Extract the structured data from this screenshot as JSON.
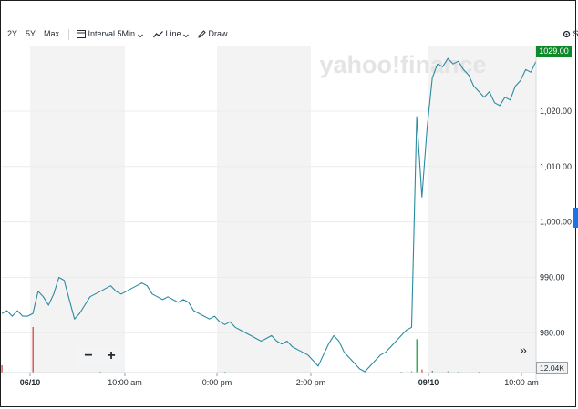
{
  "toolbar": {
    "ranges": [
      "2Y",
      "5Y",
      "Max"
    ],
    "interval_label": "Interval",
    "interval_value": "5Min",
    "chart_type": "Line",
    "draw_label": "Draw",
    "settings_label": "S"
  },
  "watermark": "yahoo!finance",
  "price_tag": "1029.00",
  "volume_tag": "12.04K",
  "zoom": {
    "minus": "−",
    "plus": "+"
  },
  "scroll_label": "»",
  "colors": {
    "line": "#2a8aa0",
    "up_tag": "#0f8a2a",
    "volume_up": "#2fa84f",
    "volume_down": "#d9534f",
    "shade": "#f3f3f3"
  },
  "chart_data": {
    "type": "line",
    "ylim": [
      973,
      1031
    ],
    "y_ticks": [
      "1,020.00",
      "1,010.00",
      "1,000.00",
      "990.00",
      "980.00"
    ],
    "y_tick_values": [
      1020,
      1010,
      1000,
      990,
      980
    ],
    "x_ticks": [
      "06/10",
      "10:00 am",
      "0:00 pm",
      "2:00 pm",
      "09/10",
      "10:00 am"
    ],
    "x_tick_bold": [
      true,
      false,
      false,
      false,
      true,
      false
    ],
    "series": [
      {
        "values": [
          983.5,
          984,
          983,
          984,
          983,
          983,
          983.5,
          987.5,
          986.5,
          985,
          987,
          990,
          989.5,
          986,
          982.5,
          983.5,
          985,
          986.5,
          987,
          987.5,
          988,
          988.5,
          987.5,
          987,
          987.5,
          988,
          988.5,
          989,
          988.5,
          987,
          986.5,
          986,
          986.5,
          986,
          985.5,
          986,
          985.5,
          984,
          983.5,
          983,
          982.5,
          983,
          982,
          981.5,
          982,
          981,
          980.5,
          980,
          979.5,
          979,
          978.5,
          979,
          979.5,
          978.5,
          978,
          978.5,
          977.5,
          977,
          976.5,
          976,
          975,
          974,
          976,
          978,
          979.5,
          978.5,
          976.5,
          975.5,
          974.5,
          973.5,
          973,
          974,
          975,
          976,
          976.5,
          977.5,
          978.5,
          979.5,
          980.5,
          981,
          1019,
          1004.5,
          1017,
          1026,
          1028.5,
          1028,
          1029.5,
          1028.5,
          1029,
          1027.5,
          1026.5,
          1024.5,
          1023.5,
          1022.5,
          1023.5,
          1021.5,
          1021,
          1022.5,
          1022,
          1024.5,
          1025.5,
          1027.5,
          1027,
          1029
        ]
      }
    ],
    "volume": [
      {
        "i": 0,
        "v": 12,
        "color": "down"
      },
      {
        "i": 6,
        "v": 75,
        "color": "down"
      },
      {
        "i": 19,
        "v": 1,
        "color": "up"
      },
      {
        "i": 43,
        "v": 1,
        "color": "up"
      },
      {
        "i": 77,
        "v": 1,
        "color": "up"
      },
      {
        "i": 79,
        "v": 2,
        "color": "up"
      },
      {
        "i": 80,
        "v": 55,
        "color": "up"
      },
      {
        "i": 81,
        "v": 5,
        "color": "down"
      },
      {
        "i": 83,
        "v": 3,
        "color": "up"
      },
      {
        "i": 86,
        "v": 2,
        "color": "up"
      },
      {
        "i": 88,
        "v": 1,
        "color": "up"
      },
      {
        "i": 92,
        "v": 1,
        "color": "up"
      }
    ]
  }
}
